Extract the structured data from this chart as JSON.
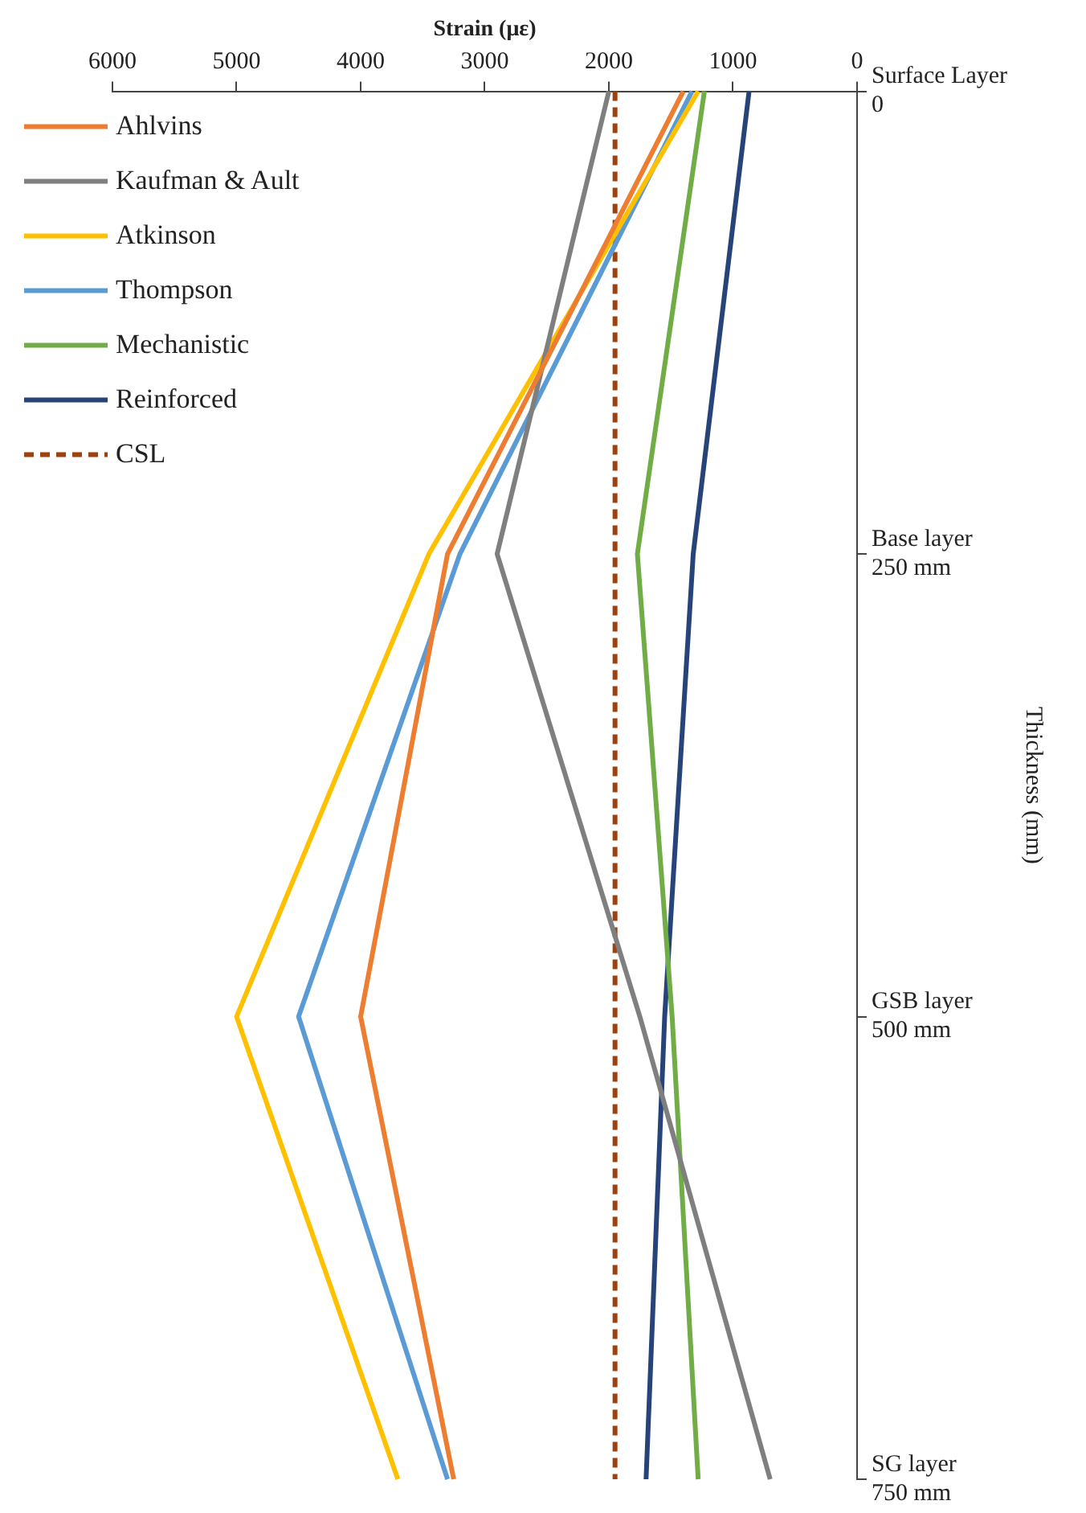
{
  "chart_data": {
    "type": "line",
    "orientation": "horizontal",
    "xlabel": "Strain (με)",
    "ylabel": "Thickness (mm)",
    "categories": [
      "Surface Layer\n0",
      "Base layer\n250 mm",
      "GSB layer\n500 mm",
      "SG layer\n750 mm"
    ],
    "series": [
      {
        "name": "Ahlvins",
        "color": "#ed7d31",
        "values": [
          1400,
          3300,
          4000,
          3250
        ]
      },
      {
        "name": "Kaufman & Ault",
        "color": "#7f7f7f",
        "values": [
          2000,
          2900,
          1750,
          700
        ]
      },
      {
        "name": "Atkinson",
        "color": "#ffc000",
        "values": [
          1280,
          3450,
          5000,
          3700
        ]
      },
      {
        "name": "Thompson",
        "color": "#5b9bd5",
        "values": [
          1330,
          3200,
          4500,
          3300
        ]
      },
      {
        "name": "Mechanistic",
        "color": "#70ad47",
        "values": [
          1230,
          1770,
          1490,
          1280
        ]
      },
      {
        "name": "Reinforced",
        "color": "#264478",
        "values": [
          870,
          1320,
          1550,
          1700
        ]
      },
      {
        "name": "CSL",
        "color": "#a0410d",
        "values": [
          1950,
          1950,
          1950,
          1950
        ],
        "line_style": "dashed"
      }
    ],
    "xlim": [
      6000,
      0
    ],
    "xticks": [
      6000,
      5000,
      4000,
      3000,
      2000,
      1000,
      0
    ],
    "grid": false,
    "legend": "top left",
    "marker": "none",
    "line_style": "solid"
  }
}
